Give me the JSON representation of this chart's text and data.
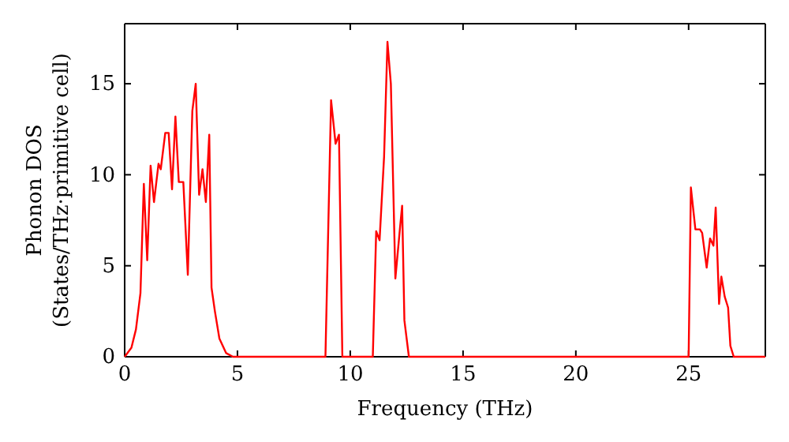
{
  "chart_data": {
    "type": "line",
    "xlabel": "Frequency (THz)",
    "ylabel": "Phonon DOS\n(States/THz·primitive cell)",
    "xlim": [
      0,
      28.4
    ],
    "ylim": [
      0,
      18.3
    ],
    "xticks": [
      0,
      5,
      10,
      15,
      20,
      25
    ],
    "yticks": [
      0,
      5,
      10,
      15
    ],
    "grid": false,
    "marker": "none",
    "line_style": "solid",
    "x": [
      0,
      0.3,
      0.5,
      0.7,
      0.85,
      1.0,
      1.15,
      1.3,
      1.5,
      1.6,
      1.8,
      1.95,
      2.1,
      2.25,
      2.4,
      2.6,
      2.8,
      3.0,
      3.15,
      3.3,
      3.45,
      3.6,
      3.75,
      3.85,
      4.0,
      4.2,
      4.5,
      4.8,
      8.9,
      9.15,
      9.35,
      9.5,
      9.65,
      11.0,
      11.15,
      11.3,
      11.5,
      11.65,
      11.8,
      12.0,
      12.2,
      12.3,
      12.4,
      12.6,
      25.0,
      25.1,
      25.3,
      25.5,
      25.6,
      25.8,
      25.95,
      26.1,
      26.2,
      26.35,
      26.45,
      26.6,
      26.75,
      26.85,
      27.0,
      28.4
    ],
    "series": [
      {
        "color": "#ff0000",
        "values": [
          0,
          0.5,
          1.5,
          3.5,
          9.5,
          5.3,
          10.5,
          8.5,
          10.6,
          10.3,
          12.3,
          12.3,
          9.2,
          13.2,
          9.6,
          9.6,
          4.5,
          13.5,
          15.0,
          8.9,
          10.3,
          8.5,
          12.2,
          3.8,
          2.5,
          1.0,
          0.2,
          0,
          0,
          14.1,
          11.7,
          12.2,
          0,
          0,
          6.9,
          6.4,
          11,
          17.3,
          15.0,
          4.3,
          7.0,
          8.3,
          2.0,
          0,
          0,
          9.3,
          7.0,
          7.0,
          6.8,
          4.9,
          6.5,
          6.1,
          8.2,
          2.9,
          4.4,
          3.3,
          2.7,
          0.6,
          0,
          0
        ]
      }
    ]
  }
}
